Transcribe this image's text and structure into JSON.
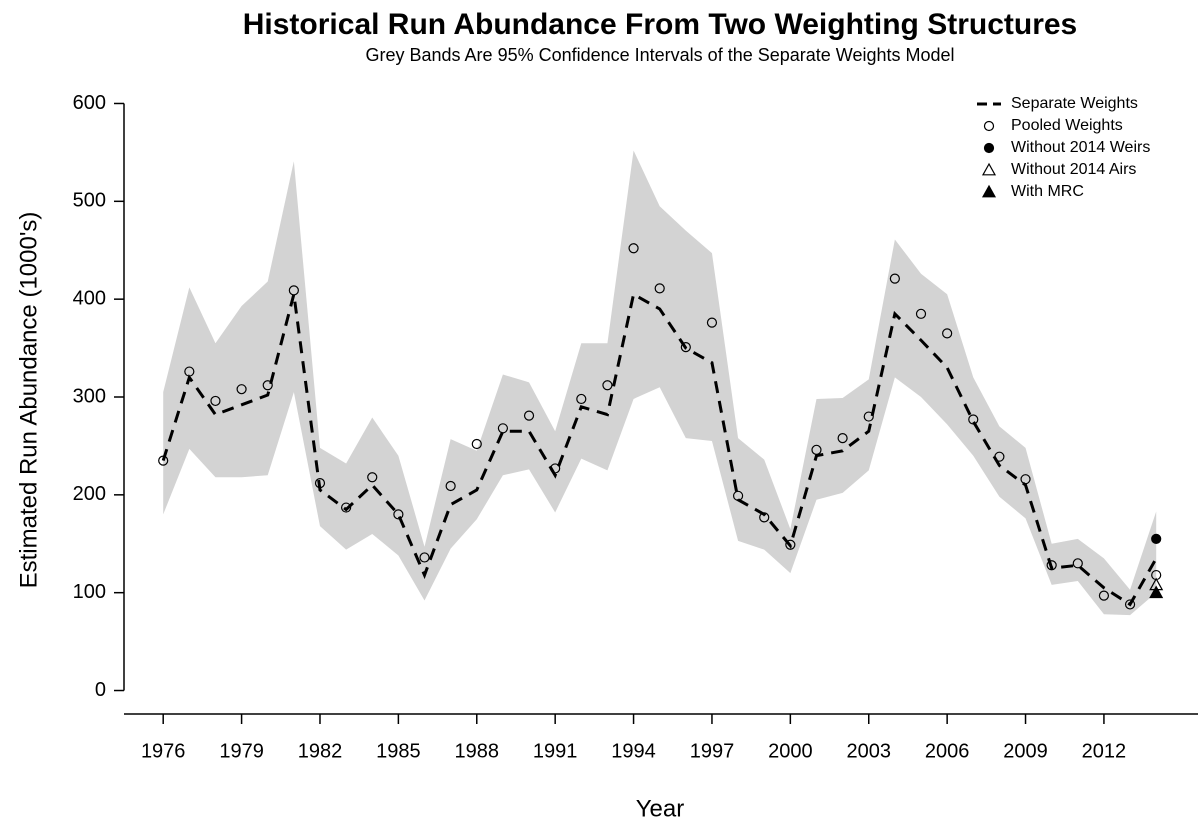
{
  "chart_data": {
    "type": "line",
    "title": "Historical Run Abundance From Two Weighting Structures",
    "subtitle": "Grey Bands Are 95% Confidence Intervals of the Separate Weights Model",
    "x_label": "Year",
    "y_label": "Estimated Run Abundance (1000's)",
    "x": [
      1976,
      1977,
      1978,
      1979,
      1980,
      1981,
      1982,
      1983,
      1984,
      1985,
      1986,
      1987,
      1988,
      1989,
      1990,
      1991,
      1992,
      1993,
      1994,
      1995,
      1996,
      1997,
      1998,
      1999,
      2000,
      2001,
      2002,
      2003,
      2004,
      2005,
      2006,
      2007,
      2008,
      2009,
      2010,
      2011,
      2012,
      2013,
      2014
    ],
    "band": {
      "color": "#d3d3d3",
      "upper": [
        305,
        412,
        355,
        393,
        418,
        541,
        248,
        232,
        279,
        240,
        147,
        257,
        245,
        323,
        315,
        265,
        355,
        355,
        552,
        495,
        470,
        447,
        258,
        236,
        165,
        298,
        299,
        318,
        461,
        426,
        405,
        320,
        270,
        248,
        150,
        155,
        135,
        103,
        183
      ],
      "lower": [
        180,
        247,
        218,
        218,
        220,
        305,
        168,
        144,
        160,
        138,
        92,
        145,
        175,
        220,
        226,
        182,
        237,
        225,
        298,
        310,
        258,
        255,
        153,
        144,
        120,
        195,
        202,
        225,
        320,
        300,
        272,
        240,
        198,
        176,
        108,
        112,
        78,
        77,
        100
      ]
    },
    "series": [
      {
        "name": "Separate Weights",
        "style": "dashed-line",
        "color": "#000000",
        "values": [
          235,
          320,
          282,
          292,
          302,
          405,
          205,
          185,
          210,
          180,
          118,
          190,
          205,
          265,
          265,
          220,
          290,
          282,
          405,
          390,
          350,
          335,
          195,
          180,
          148,
          240,
          245,
          265,
          385,
          358,
          330,
          275,
          230,
          210,
          125,
          128,
          105,
          88,
          135
        ]
      },
      {
        "name": "Pooled Weights",
        "style": "circle-open",
        "color": "#000000",
        "values": [
          235,
          326,
          296,
          308,
          312,
          409,
          212,
          187,
          218,
          180,
          136,
          209,
          252,
          268,
          281,
          227,
          298,
          312,
          452,
          411,
          351,
          376,
          199,
          177,
          149,
          246,
          258,
          280,
          421,
          385,
          365,
          277,
          239,
          216,
          128,
          130,
          97,
          88,
          118
        ]
      },
      {
        "name": "Without 2014 Weirs",
        "style": "circle-filled",
        "color": "#000000",
        "x": [
          2014
        ],
        "values": [
          155
        ]
      },
      {
        "name": "Without 2014 Airs",
        "style": "triangle-open",
        "color": "#000000",
        "x": [
          2014
        ],
        "values": [
          108
        ]
      },
      {
        "name": "With MRC",
        "style": "triangle-filled",
        "color": "#000000",
        "x": [
          2014
        ],
        "values": [
          100
        ]
      }
    ],
    "xlim": [
      1974.5,
      2015.6
    ],
    "ylim": [
      -24,
      624
    ],
    "xticks": [
      1976,
      1979,
      1982,
      1985,
      1988,
      1991,
      1994,
      1997,
      2000,
      2003,
      2006,
      2009,
      2012
    ],
    "yticks": [
      0,
      100,
      200,
      300,
      400,
      500,
      600
    ],
    "legend": "topright"
  }
}
